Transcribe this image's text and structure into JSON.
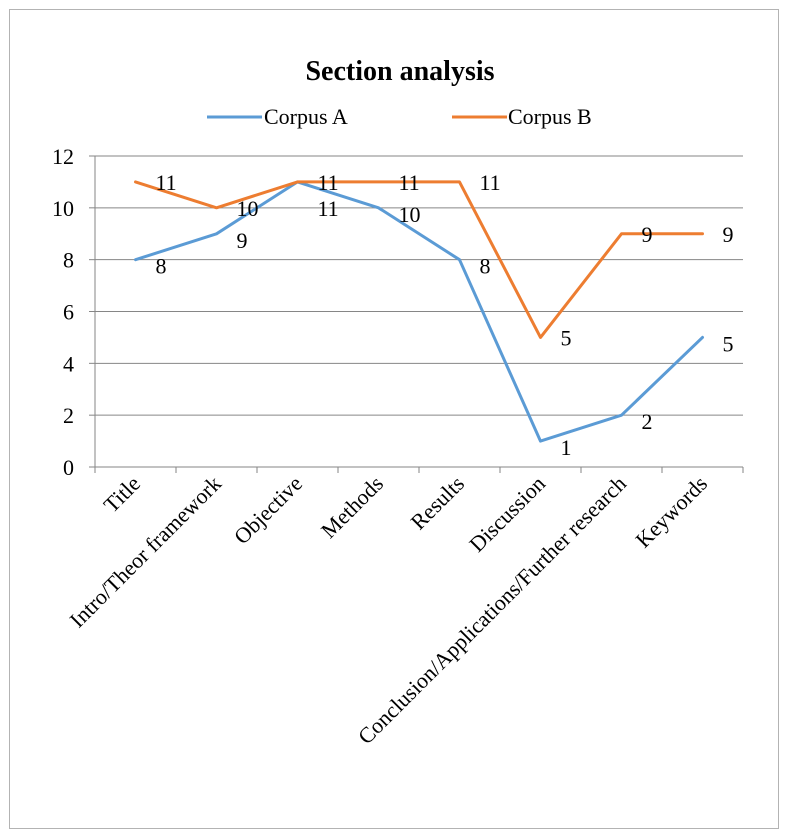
{
  "chart_data": {
    "type": "line",
    "title": "Section analysis",
    "xlabel": "",
    "ylabel": "",
    "ylim": [
      0,
      12
    ],
    "yticks": [
      0,
      2,
      4,
      6,
      8,
      10,
      12
    ],
    "grid": true,
    "legend_position": "top",
    "categories": [
      "Title",
      "Intro/Theor framework",
      "Objective",
      "Methods",
      "Results",
      "Discussion",
      "Conclusion/Applications/Further research",
      "Keywords"
    ],
    "series": [
      {
        "name": "Corpus A",
        "color": "#5b9bd5",
        "values": [
          8,
          9,
          11,
          10,
          8,
          1,
          2,
          5
        ]
      },
      {
        "name": "Corpus B",
        "color": "#ed7d31",
        "values": [
          11,
          10,
          11,
          11,
          11,
          5,
          9,
          9
        ]
      }
    ]
  }
}
